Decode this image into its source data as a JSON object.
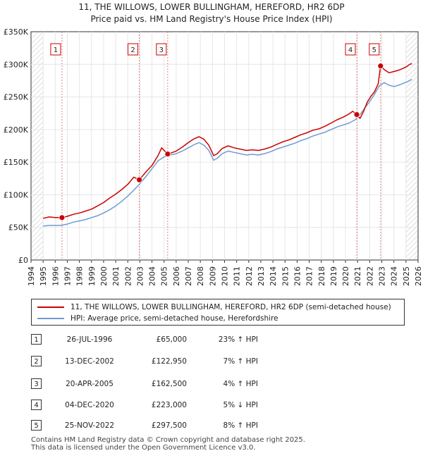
{
  "header": {
    "title_line1": "11, THE WILLOWS, LOWER BULLINGHAM, HEREFORD, HR2 6DP",
    "title_line2": "Price paid vs. HM Land Registry's House Price Index (HPI)"
  },
  "chart_data": {
    "type": "line",
    "title": "11, THE WILLOWS, LOWER BULLINGHAM, HEREFORD, HR2 6DP — Price paid vs. HM Land Registry's House Price Index (HPI)",
    "xlabel": "",
    "ylabel": "",
    "xlim": [
      1994,
      2026
    ],
    "ylim": [
      0,
      350000
    ],
    "x_ticks": [
      "1994",
      "1995",
      "1996",
      "1997",
      "1998",
      "1999",
      "2000",
      "2001",
      "2002",
      "2003",
      "2004",
      "2005",
      "2006",
      "2007",
      "2008",
      "2009",
      "2010",
      "2011",
      "2012",
      "2013",
      "2014",
      "2015",
      "2016",
      "2017",
      "2018",
      "2019",
      "2020",
      "2021",
      "2022",
      "2023",
      "2024",
      "2025",
      "2026"
    ],
    "y_ticks": [
      {
        "value": 0,
        "label": "£0"
      },
      {
        "value": 50000,
        "label": "£50K"
      },
      {
        "value": 100000,
        "label": "£100K"
      },
      {
        "value": 150000,
        "label": "£150K"
      },
      {
        "value": 200000,
        "label": "£200K"
      },
      {
        "value": 250000,
        "label": "£250K"
      },
      {
        "value": 300000,
        "label": "£300K"
      },
      {
        "value": 350000,
        "label": "£350K"
      }
    ],
    "grid": true,
    "legend_position": "bottom",
    "series": [
      {
        "name": "11, THE WILLOWS, LOWER BULLINGHAM, HEREFORD, HR2 6DP (semi-detached house)",
        "color": "#cc0000",
        "points": [
          [
            1995.0,
            64000
          ],
          [
            1995.5,
            66000
          ],
          [
            1996.0,
            65000
          ],
          [
            1996.56,
            65000
          ],
          [
            1997.0,
            67000
          ],
          [
            1997.5,
            70000
          ],
          [
            1998.0,
            72000
          ],
          [
            1998.5,
            75000
          ],
          [
            1999.0,
            78000
          ],
          [
            1999.5,
            83000
          ],
          [
            2000.0,
            88000
          ],
          [
            2000.5,
            95000
          ],
          [
            2001.0,
            101000
          ],
          [
            2001.5,
            108000
          ],
          [
            2002.0,
            116000
          ],
          [
            2002.5,
            127000
          ],
          [
            2002.95,
            122950
          ],
          [
            2003.5,
            135000
          ],
          [
            2004.0,
            145000
          ],
          [
            2004.5,
            160000
          ],
          [
            2004.8,
            172000
          ],
          [
            2005.3,
            162500
          ],
          [
            2005.7,
            165000
          ],
          [
            2006.0,
            167000
          ],
          [
            2006.5,
            173000
          ],
          [
            2007.0,
            180000
          ],
          [
            2007.5,
            186000
          ],
          [
            2007.9,
            189000
          ],
          [
            2008.3,
            185000
          ],
          [
            2008.7,
            176000
          ],
          [
            2009.1,
            160000
          ],
          [
            2009.4,
            163000
          ],
          [
            2009.8,
            171000
          ],
          [
            2010.3,
            175000
          ],
          [
            2010.8,
            172000
          ],
          [
            2011.3,
            170000
          ],
          [
            2011.8,
            168000
          ],
          [
            2012.3,
            169000
          ],
          [
            2012.8,
            168000
          ],
          [
            2013.3,
            170000
          ],
          [
            2013.8,
            173000
          ],
          [
            2014.3,
            177000
          ],
          [
            2014.8,
            181000
          ],
          [
            2015.3,
            184000
          ],
          [
            2015.8,
            188000
          ],
          [
            2016.3,
            192000
          ],
          [
            2016.8,
            195000
          ],
          [
            2017.3,
            199000
          ],
          [
            2017.8,
            201000
          ],
          [
            2018.3,
            205000
          ],
          [
            2018.8,
            210000
          ],
          [
            2019.3,
            215000
          ],
          [
            2019.8,
            219000
          ],
          [
            2020.3,
            224000
          ],
          [
            2020.6,
            228000
          ],
          [
            2020.93,
            223000
          ],
          [
            2021.2,
            217000
          ],
          [
            2021.5,
            228000
          ],
          [
            2021.8,
            242000
          ],
          [
            2022.1,
            251000
          ],
          [
            2022.4,
            258000
          ],
          [
            2022.7,
            270000
          ],
          [
            2022.9,
            297500
          ],
          [
            2023.2,
            292000
          ],
          [
            2023.6,
            287000
          ],
          [
            2024.0,
            289000
          ],
          [
            2024.4,
            291000
          ],
          [
            2024.8,
            294000
          ],
          [
            2025.1,
            297000
          ],
          [
            2025.3,
            300000
          ],
          [
            2025.5,
            301000
          ]
        ]
      },
      {
        "name": "HPI: Average price, semi-detached house, Herefordshire",
        "color": "#6f9bd1",
        "points": [
          [
            1995.0,
            52000
          ],
          [
            1995.5,
            53000
          ],
          [
            1996.0,
            53000
          ],
          [
            1996.5,
            53000
          ],
          [
            1997.0,
            55000
          ],
          [
            1997.5,
            58000
          ],
          [
            1998.0,
            60000
          ],
          [
            1998.5,
            62000
          ],
          [
            1999.0,
            65000
          ],
          [
            1999.5,
            68000
          ],
          [
            2000.0,
            72000
          ],
          [
            2000.5,
            77000
          ],
          [
            2001.0,
            83000
          ],
          [
            2001.5,
            90000
          ],
          [
            2002.0,
            98000
          ],
          [
            2002.5,
            107000
          ],
          [
            2003.0,
            117000
          ],
          [
            2003.5,
            128000
          ],
          [
            2004.0,
            140000
          ],
          [
            2004.5,
            152000
          ],
          [
            2005.0,
            158000
          ],
          [
            2005.5,
            161000
          ],
          [
            2006.0,
            163000
          ],
          [
            2006.5,
            167000
          ],
          [
            2007.0,
            172000
          ],
          [
            2007.5,
            177000
          ],
          [
            2007.9,
            180000
          ],
          [
            2008.3,
            176000
          ],
          [
            2008.7,
            168000
          ],
          [
            2009.1,
            153000
          ],
          [
            2009.4,
            156000
          ],
          [
            2009.8,
            163000
          ],
          [
            2010.3,
            167000
          ],
          [
            2010.8,
            165000
          ],
          [
            2011.3,
            163000
          ],
          [
            2011.8,
            161000
          ],
          [
            2012.3,
            162000
          ],
          [
            2012.8,
            161000
          ],
          [
            2013.3,
            163000
          ],
          [
            2013.8,
            166000
          ],
          [
            2014.3,
            170000
          ],
          [
            2014.8,
            173000
          ],
          [
            2015.3,
            176000
          ],
          [
            2015.8,
            179000
          ],
          [
            2016.3,
            183000
          ],
          [
            2016.8,
            186000
          ],
          [
            2017.3,
            190000
          ],
          [
            2017.8,
            193000
          ],
          [
            2018.3,
            196000
          ],
          [
            2018.8,
            200000
          ],
          [
            2019.3,
            204000
          ],
          [
            2019.8,
            207000
          ],
          [
            2020.3,
            210000
          ],
          [
            2020.8,
            215000
          ],
          [
            2021.2,
            223000
          ],
          [
            2021.6,
            233000
          ],
          [
            2022.0,
            243000
          ],
          [
            2022.4,
            254000
          ],
          [
            2022.8,
            267000
          ],
          [
            2023.2,
            272000
          ],
          [
            2023.6,
            268000
          ],
          [
            2024.0,
            266000
          ],
          [
            2024.4,
            268000
          ],
          [
            2024.8,
            271000
          ],
          [
            2025.2,
            274000
          ],
          [
            2025.5,
            277000
          ]
        ]
      }
    ],
    "sales": [
      {
        "num": "1",
        "x": 1996.56,
        "price": 65000
      },
      {
        "num": "2",
        "x": 2002.95,
        "price": 122950
      },
      {
        "num": "3",
        "x": 2005.3,
        "price": 162500
      },
      {
        "num": "4",
        "x": 2020.93,
        "price": 223000
      },
      {
        "num": "5",
        "x": 2022.9,
        "price": 297500
      }
    ],
    "hatch_after": 2025.0
  },
  "legend": {
    "entries": [
      {
        "label": "11, THE WILLOWS, LOWER BULLINGHAM, HEREFORD, HR2 6DP (semi-detached house)",
        "color": "#cc0000"
      },
      {
        "label": "HPI: Average price, semi-detached house, Herefordshire",
        "color": "#6f9bd1"
      }
    ]
  },
  "table": {
    "rows": [
      {
        "num": "1",
        "date": "26-JUL-1996",
        "price": "£65,000",
        "hpi": "23% ↑ HPI"
      },
      {
        "num": "2",
        "date": "13-DEC-2002",
        "price": "£122,950",
        "hpi": "7% ↑ HPI"
      },
      {
        "num": "3",
        "date": "20-APR-2005",
        "price": "£162,500",
        "hpi": "4% ↑ HPI"
      },
      {
        "num": "4",
        "date": "04-DEC-2020",
        "price": "£223,000",
        "hpi": "5% ↓ HPI"
      },
      {
        "num": "5",
        "date": "25-NOV-2022",
        "price": "£297,500",
        "hpi": "8% ↑ HPI"
      }
    ]
  },
  "footer": {
    "line1": "Contains HM Land Registry data © Crown copyright and database right 2025.",
    "line2": "This data is licensed under the Open Government Licence v3.0."
  }
}
